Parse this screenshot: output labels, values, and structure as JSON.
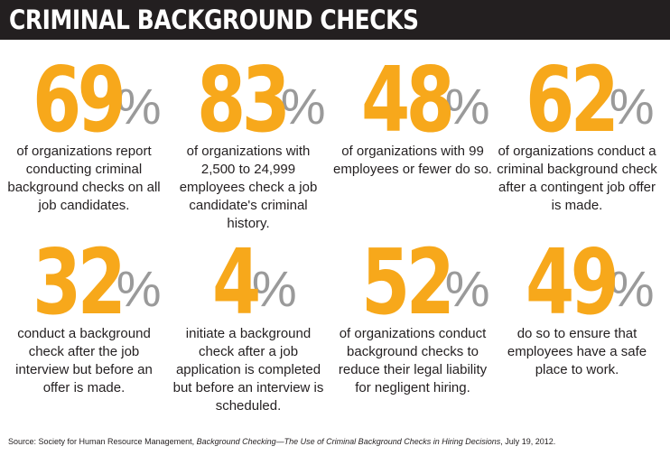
{
  "title": "CRIMINAL BACKGROUND CHECKS",
  "stats": [
    {
      "number": "69",
      "percent_sign": "%",
      "description": "of organizations report conducting criminal background checks on all job candidates."
    },
    {
      "number": "83",
      "percent_sign": "%",
      "description": "of organizations with 2,500 to 24,999 employees check a job candidate's criminal history."
    },
    {
      "number": "48",
      "percent_sign": "%",
      "description": "of organizations with 99 employees or fewer do so."
    },
    {
      "number": "62",
      "percent_sign": "%",
      "description": "of organizations conduct a criminal background check after a contingent job offer is made."
    },
    {
      "number": "32",
      "percent_sign": "%",
      "description": "conduct a background check after the job interview but before an offer is made."
    },
    {
      "number": "4",
      "percent_sign": "%",
      "description": "initiate a background check after a job application is completed but before an interview is scheduled."
    },
    {
      "number": "52",
      "percent_sign": "%",
      "description": "of organizations conduct background checks to reduce their legal liability for negligent hiring."
    },
    {
      "number": "49",
      "percent_sign": "%",
      "description": "do so to ensure that employees have a safe place to work."
    }
  ],
  "source": {
    "prefix": "Source: Society for Human Resource Management, ",
    "title": "Background Checking—The Use of Criminal Background Checks in Hiring Decisions",
    "suffix": ", July 19, 2012."
  },
  "colors": {
    "accent": "#f7a81b",
    "percent": "#9a9a9a",
    "title_bar": "#231f20",
    "text": "#231f20"
  }
}
